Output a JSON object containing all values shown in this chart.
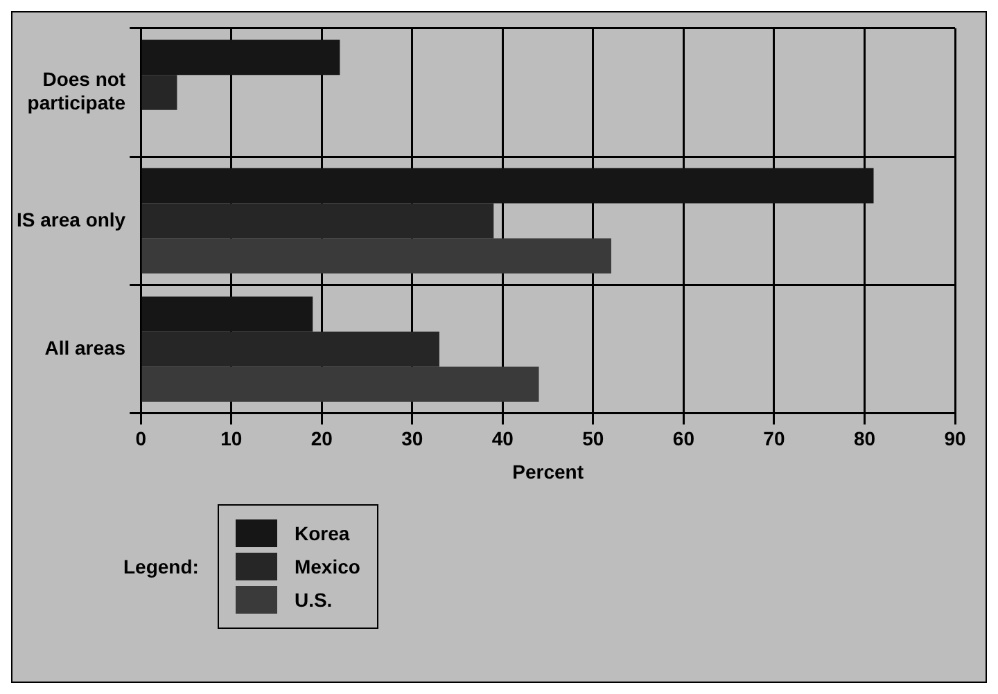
{
  "chart_data": {
    "type": "bar",
    "orientation": "horizontal",
    "xlabel": "Percent",
    "legend_title": "Legend:",
    "legend": "bottom left",
    "categories": [
      "Does not participate",
      "IS area only",
      "All areas"
    ],
    "series": [
      {
        "name": "Korea",
        "color": "#161616",
        "values": [
          22,
          81,
          19
        ]
      },
      {
        "name": "Mexico",
        "color": "#262626",
        "values": [
          4,
          39,
          33
        ]
      },
      {
        "name": "U.S.",
        "color": "#3a3a3a",
        "values": [
          null,
          52,
          44
        ]
      }
    ],
    "xlim": [
      0,
      90
    ],
    "xticks": [
      0,
      10,
      20,
      30,
      40,
      50,
      60,
      70,
      80,
      90
    ],
    "grid": true
  }
}
